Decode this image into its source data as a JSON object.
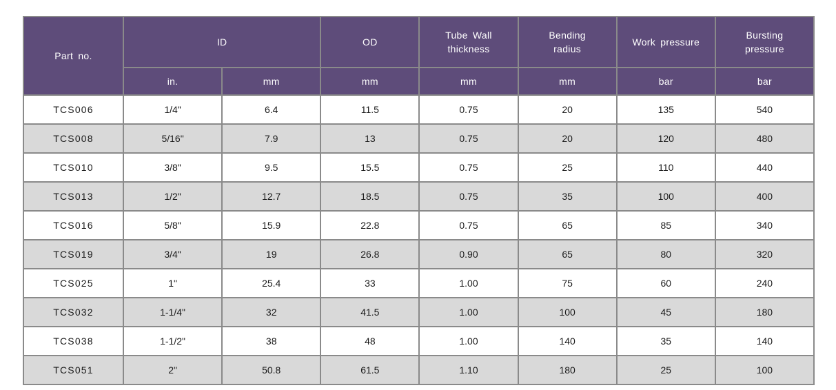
{
  "colors": {
    "header_bg": "#5e4c7a",
    "header_text": "#ffffff",
    "row_bg": "#ffffff",
    "row_alt_bg": "#d9d9d9",
    "border": "#8a8a8a",
    "body_text": "#1a1a1a"
  },
  "chart_data": {
    "type": "table",
    "title": "",
    "header_row_1": [
      {
        "label": "Part no.",
        "rowspan": 2
      },
      {
        "label": "ID",
        "colspan": 2
      },
      {
        "label": "OD"
      },
      {
        "label": "Tube Wall\nthickness"
      },
      {
        "label": "Bending\nradius"
      },
      {
        "label": "Work pressure"
      },
      {
        "label": "Bursting\npressure"
      }
    ],
    "header_row_2": [
      "in.",
      "mm",
      "mm",
      "mm",
      "mm",
      "bar",
      "bar"
    ],
    "column_keys": [
      "part_no",
      "id_in",
      "id_mm",
      "od_mm",
      "tube_wall_thickness_mm",
      "bending_radius_mm",
      "work_pressure_bar",
      "bursting_pressure_bar"
    ],
    "rows": [
      [
        "TCS006",
        "1/4\"",
        "6.4",
        "11.5",
        "0.75",
        "20",
        "135",
        "540"
      ],
      [
        "TCS008",
        "5/16\"",
        "7.9",
        "13",
        "0.75",
        "20",
        "120",
        "480"
      ],
      [
        "TCS010",
        "3/8\"",
        "9.5",
        "15.5",
        "0.75",
        "25",
        "110",
        "440"
      ],
      [
        "TCS013",
        "1/2\"",
        "12.7",
        "18.5",
        "0.75",
        "35",
        "100",
        "400"
      ],
      [
        "TCS016",
        "5/8\"",
        "15.9",
        "22.8",
        "0.75",
        "65",
        "85",
        "340"
      ],
      [
        "TCS019",
        "3/4\"",
        "19",
        "26.8",
        "0.90",
        "65",
        "80",
        "320"
      ],
      [
        "TCS025",
        "1\"",
        "25.4",
        "33",
        "1.00",
        "75",
        "60",
        "240"
      ],
      [
        "TCS032",
        "1-1/4\"",
        "32",
        "41.5",
        "1.00",
        "100",
        "45",
        "180"
      ],
      [
        "TCS038",
        "1-1/2\"",
        "38",
        "48",
        "1.00",
        "140",
        "35",
        "140"
      ],
      [
        "TCS051",
        "2\"",
        "50.8",
        "61.5",
        "1.10",
        "180",
        "25",
        "100"
      ]
    ]
  }
}
